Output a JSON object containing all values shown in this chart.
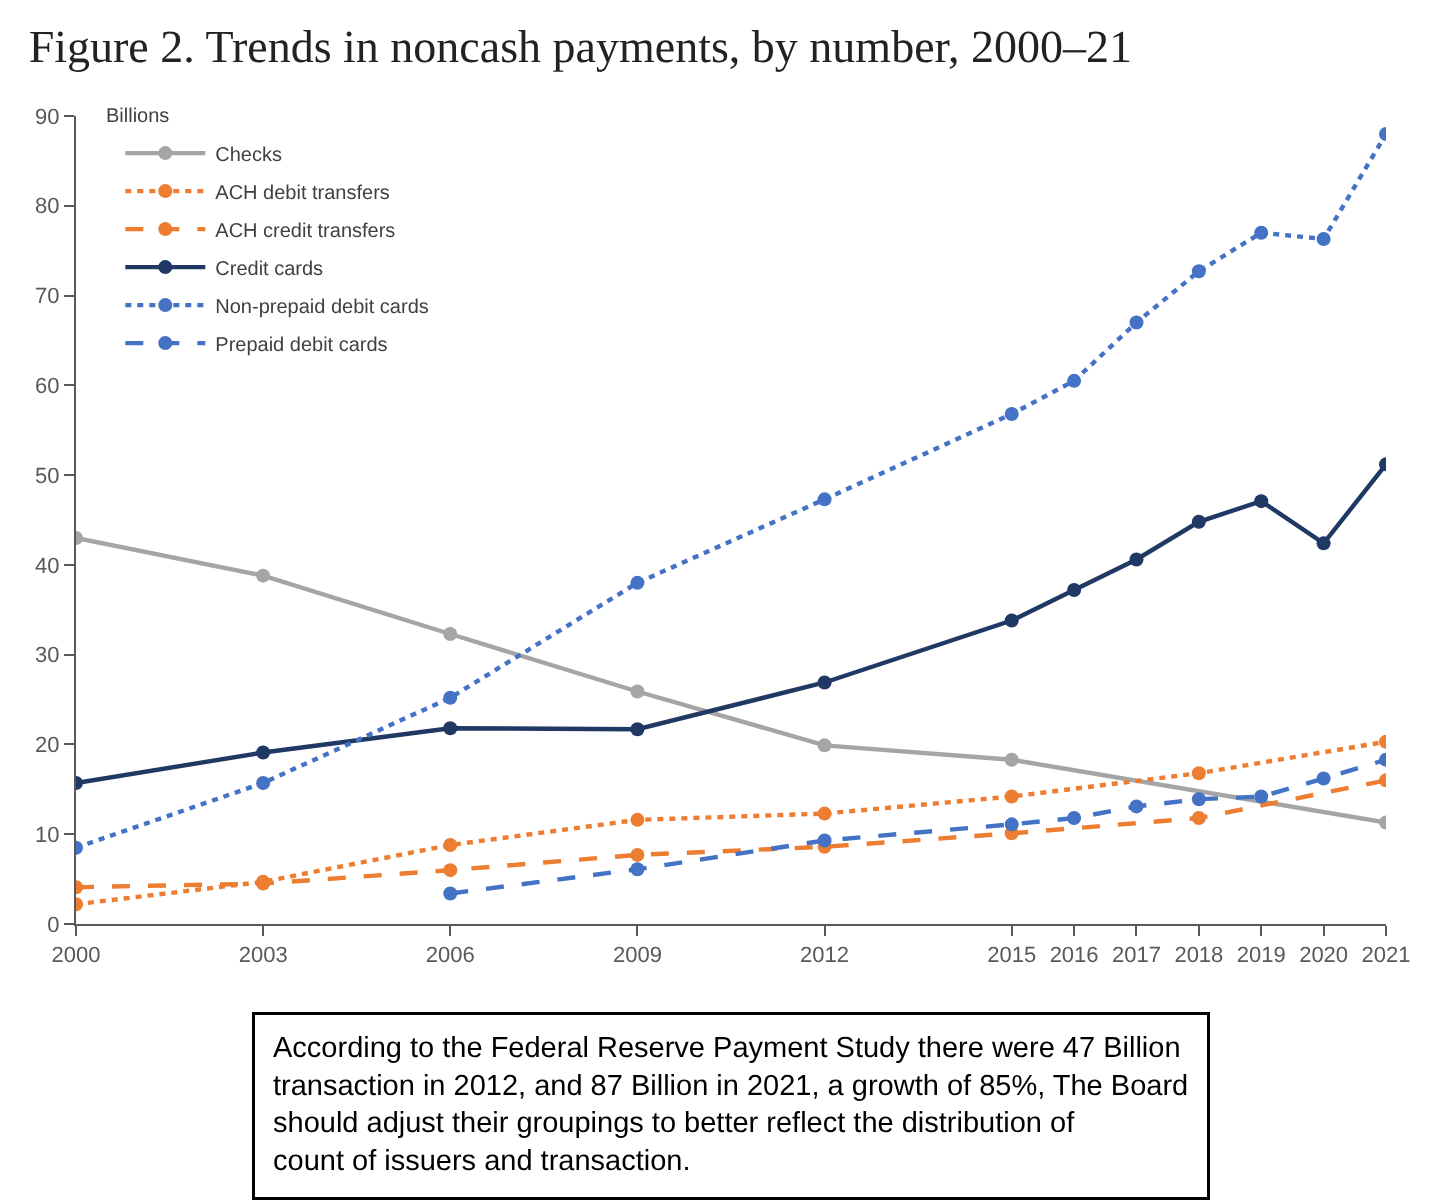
{
  "chart_data": {
    "type": "line",
    "title": "Figure 2. Trends in noncash payments, by number, 2000–21",
    "ylabel": "Billions",
    "x": [
      2000,
      2003,
      2006,
      2009,
      2012,
      2015,
      2016,
      2017,
      2018,
      2019,
      2020,
      2021
    ],
    "series": [
      {
        "name": "Checks",
        "color": "#a5a5a5",
        "line_style": "solid",
        "x": [
          2000,
          2003,
          2006,
          2009,
          2012,
          2015,
          2021
        ],
        "values": [
          43,
          38.8,
          32.3,
          25.9,
          19.9,
          18.3,
          11.3
        ]
      },
      {
        "name": "ACH debit transfers",
        "color": "#ed7d31",
        "line_style": "dotted",
        "x": [
          2000,
          2003,
          2006,
          2009,
          2012,
          2015,
          2018,
          2021
        ],
        "values": [
          2.2,
          4.7,
          8.8,
          11.6,
          12.3,
          14.2,
          16.8,
          20.3
        ]
      },
      {
        "name": "ACH credit transfers",
        "color": "#ed7d31",
        "line_style": "dashed",
        "x": [
          2000,
          2003,
          2006,
          2009,
          2012,
          2015,
          2018,
          2021
        ],
        "values": [
          4.1,
          4.5,
          6.0,
          7.7,
          8.6,
          10.1,
          11.8,
          16.0
        ]
      },
      {
        "name": "Credit cards",
        "color": "#1f3864",
        "line_style": "solid",
        "values": [
          15.7,
          19.1,
          21.8,
          21.7,
          26.9,
          33.8,
          37.2,
          40.6,
          44.8,
          47.1,
          42.4,
          51.2
        ]
      },
      {
        "name": "Non-prepaid debit cards",
        "color": "#4472c4",
        "line_style": "dotted",
        "values": [
          8.5,
          15.7,
          25.2,
          38,
          47.3,
          56.8,
          60.5,
          67,
          72.7,
          77,
          76.3,
          88
        ]
      },
      {
        "name": "Prepaid debit cards",
        "color": "#4472c4",
        "line_style": "dashed",
        "values": [
          null,
          null,
          3.4,
          6.1,
          9.3,
          11.1,
          11.8,
          13.1,
          13.9,
          14.2,
          16.2,
          18.3
        ]
      }
    ],
    "xlim": [
      2000,
      2021
    ],
    "xticks": [
      2000,
      2003,
      2006,
      2009,
      2012,
      2015,
      2016,
      2017,
      2018,
      2019,
      2020,
      2021
    ],
    "ylim": [
      0,
      90
    ],
    "yticks": [
      0,
      10,
      20,
      30,
      40,
      50,
      60,
      70,
      80,
      90
    ],
    "legend": "top left",
    "marker": "circle",
    "annotations": [
      "According to the Federal Reserve Payment Study there were 47 Billion transaction in 2012, and 87 Billion in 2021, a growth of 85%, The Board should adjust their groupings to better reflect the distribution of count of issuers and transaction."
    ]
  }
}
